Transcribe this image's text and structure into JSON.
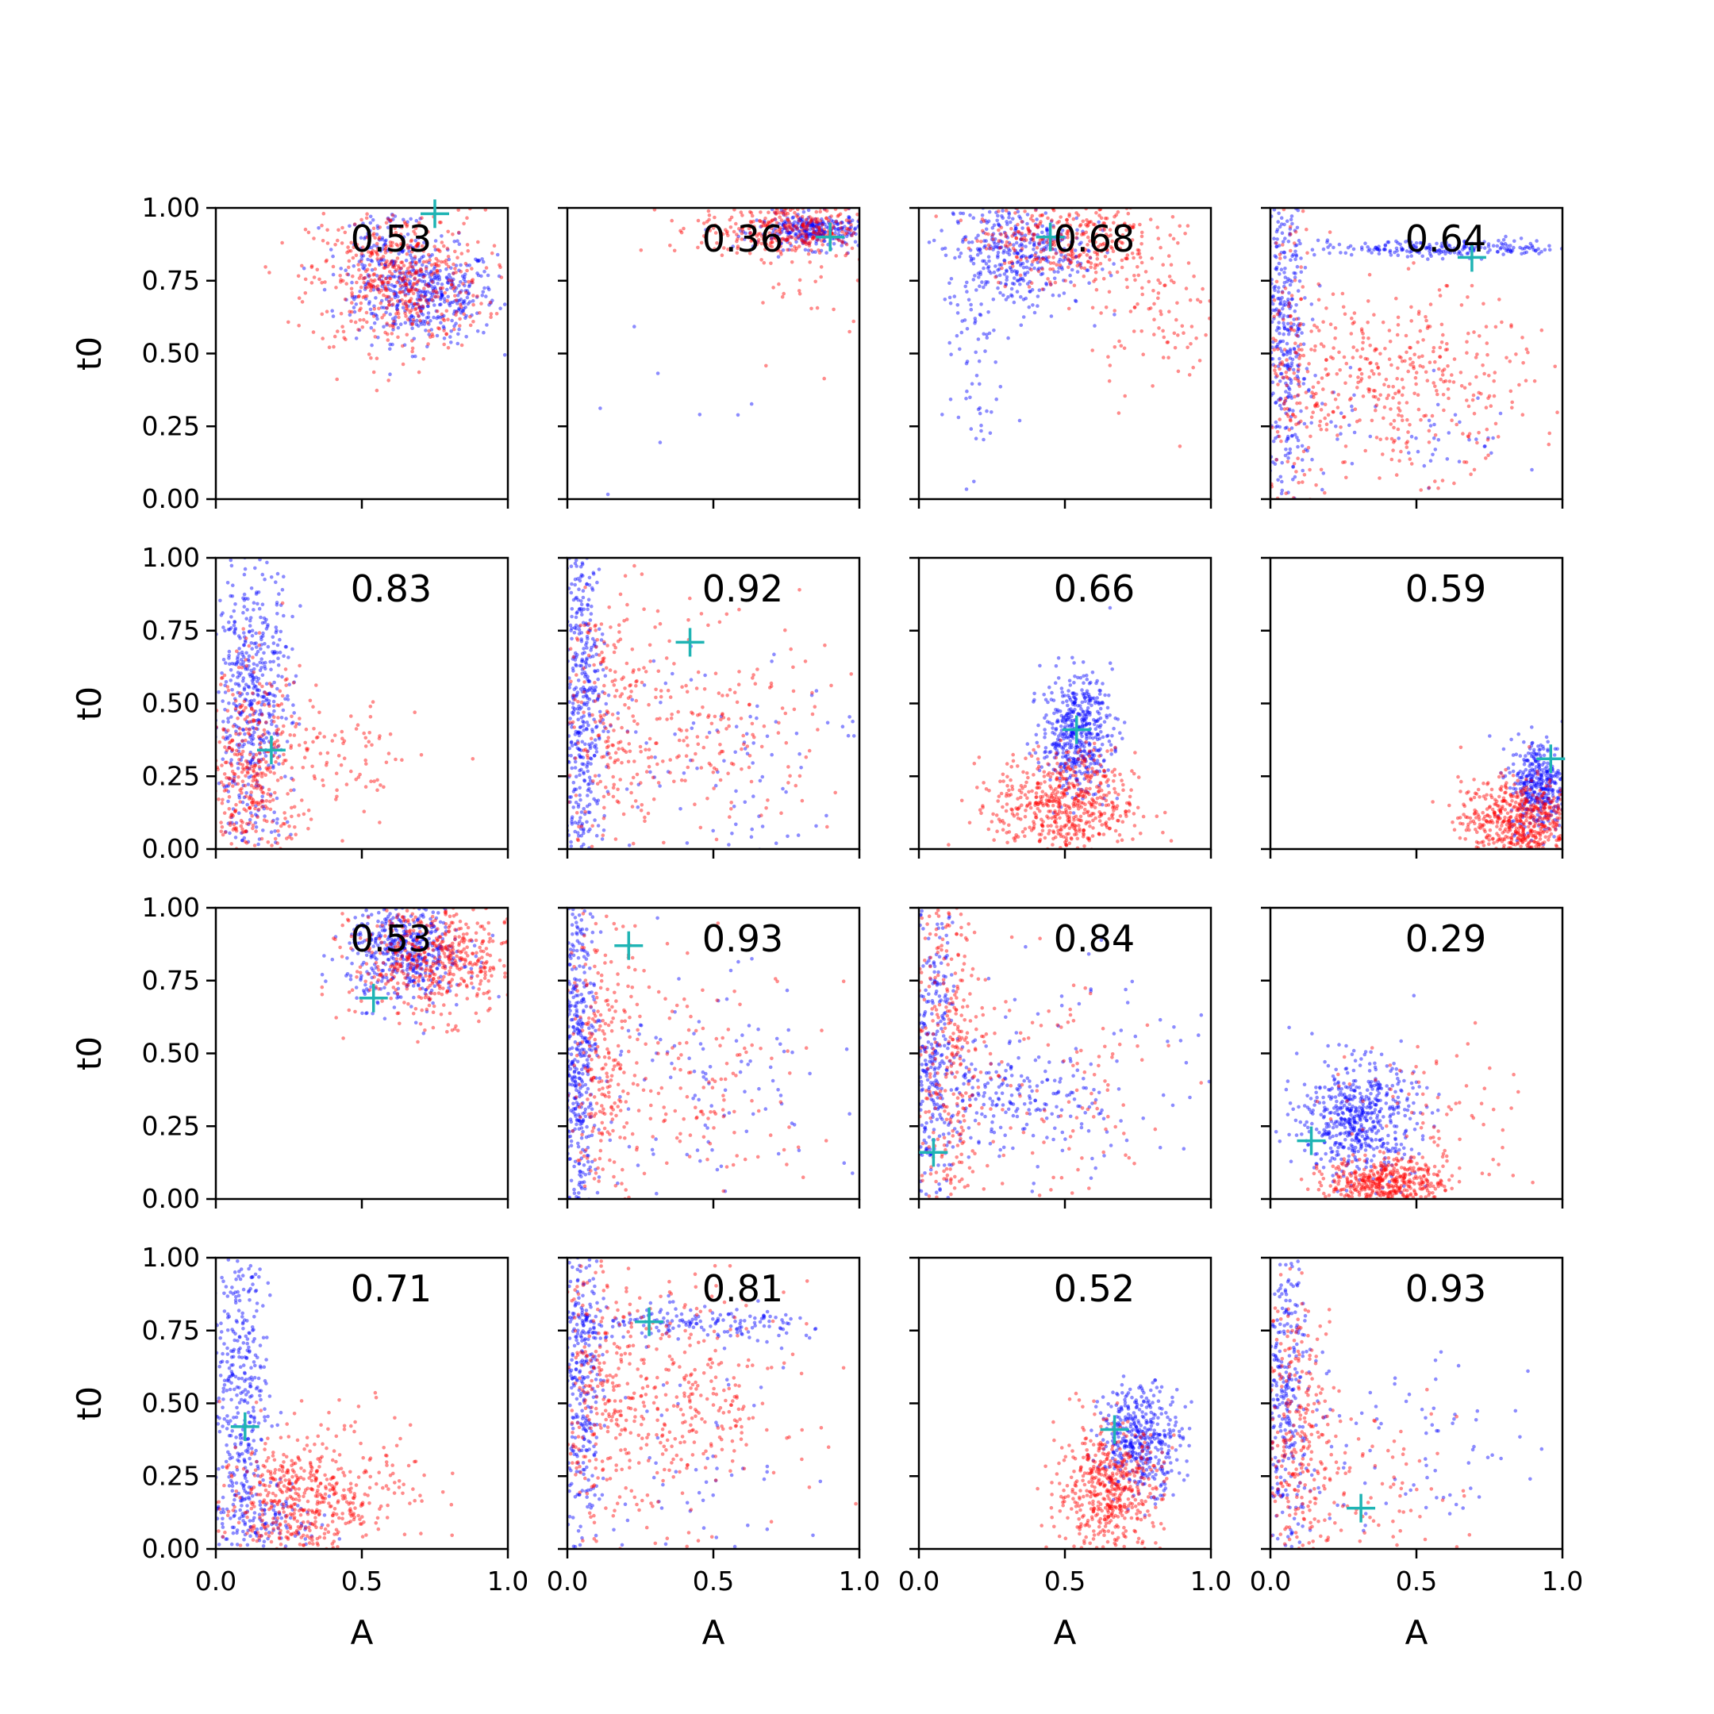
{
  "colors": {
    "blue": "#0000ff",
    "red": "#ff0000",
    "cross": "#1fb4b4"
  },
  "axes": {
    "xlabel": "A",
    "ylabel": "t0",
    "xticks": [
      "0.0",
      "0.5",
      "1.0"
    ],
    "yticks": [
      "0.00",
      "0.25",
      "0.50",
      "0.75",
      "1.00"
    ],
    "xlim": [
      0,
      1
    ],
    "ylim": [
      0,
      1
    ]
  },
  "chart_data": [
    {
      "type": "scatter",
      "label": "0.53",
      "cross": [
        0.75,
        0.98
      ],
      "series": [
        {
          "color": "blue",
          "clusters": [
            {
              "cx": 0.72,
              "cy": 0.7,
              "sx": 0.12,
              "sy": 0.08,
              "n": 420
            },
            {
              "cx": 0.58,
              "cy": 0.85,
              "sx": 0.08,
              "sy": 0.08,
              "n": 120
            }
          ]
        },
        {
          "color": "red",
          "clusters": [
            {
              "cx": 0.62,
              "cy": 0.75,
              "sx": 0.15,
              "sy": 0.12,
              "n": 520
            }
          ]
        }
      ]
    },
    {
      "type": "scatter",
      "label": "0.36",
      "cross": [
        0.9,
        0.9
      ],
      "series": [
        {
          "color": "blue",
          "clusters": [
            {
              "cx": 0.85,
              "cy": 0.92,
              "sx": 0.1,
              "sy": 0.03,
              "n": 320
            },
            {
              "cx": 0.3,
              "cy": 0.2,
              "sx": 0.15,
              "sy": 0.15,
              "n": 12
            }
          ]
        },
        {
          "color": "red",
          "clusters": [
            {
              "cx": 0.75,
              "cy": 0.93,
              "sx": 0.15,
              "sy": 0.05,
              "n": 360
            },
            {
              "cx": 0.85,
              "cy": 0.72,
              "sx": 0.1,
              "sy": 0.12,
              "n": 25
            }
          ]
        }
      ]
    },
    {
      "type": "scatter",
      "label": "0.68",
      "cross": [
        0.45,
        0.9
      ],
      "series": [
        {
          "color": "blue",
          "clusters": [
            {
              "cx": 0.33,
              "cy": 0.85,
              "sx": 0.12,
              "sy": 0.1,
              "n": 420
            },
            {
              "cx": 0.18,
              "cy": 0.45,
              "sx": 0.05,
              "sy": 0.18,
              "n": 50
            }
          ]
        },
        {
          "color": "red",
          "clusters": [
            {
              "cx": 0.5,
              "cy": 0.9,
              "sx": 0.15,
              "sy": 0.08,
              "n": 360
            },
            {
              "cx": 0.82,
              "cy": 0.65,
              "sx": 0.12,
              "sy": 0.15,
              "n": 100
            }
          ]
        }
      ]
    },
    {
      "type": "scatter",
      "label": "0.64",
      "cross": [
        0.69,
        0.83
      ],
      "series": [
        {
          "color": "blue",
          "clusters": [
            {
              "cx": 0.05,
              "cy": 0.55,
              "sx": 0.04,
              "sy": 0.3,
              "n": 380
            },
            {
              "cx": 0.6,
              "cy": 0.86,
              "sx": 0.25,
              "sy": 0.015,
              "n": 220
            },
            {
              "cx": 0.45,
              "cy": 0.22,
              "sx": 0.25,
              "sy": 0.1,
              "n": 60
            }
          ]
        },
        {
          "color": "red",
          "clusters": [
            {
              "cx": 0.45,
              "cy": 0.4,
              "sx": 0.22,
              "sy": 0.15,
              "n": 380
            },
            {
              "cx": 0.08,
              "cy": 0.5,
              "sx": 0.05,
              "sy": 0.3,
              "n": 150
            }
          ]
        }
      ]
    },
    {
      "type": "scatter",
      "label": "0.83",
      "cross": [
        0.19,
        0.34
      ],
      "series": [
        {
          "color": "blue",
          "clusters": [
            {
              "cx": 0.12,
              "cy": 0.5,
              "sx": 0.07,
              "sy": 0.25,
              "n": 520
            }
          ]
        },
        {
          "color": "red",
          "clusters": [
            {
              "cx": 0.12,
              "cy": 0.25,
              "sx": 0.09,
              "sy": 0.18,
              "n": 420
            },
            {
              "cx": 0.45,
              "cy": 0.3,
              "sx": 0.12,
              "sy": 0.12,
              "n": 80
            }
          ]
        }
      ]
    },
    {
      "type": "scatter",
      "label": "0.92",
      "cross": [
        0.42,
        0.71
      ],
      "series": [
        {
          "color": "blue",
          "clusters": [
            {
              "cx": 0.05,
              "cy": 0.5,
              "sx": 0.04,
              "sy": 0.3,
              "n": 450
            },
            {
              "cx": 0.55,
              "cy": 0.35,
              "sx": 0.25,
              "sy": 0.2,
              "n": 100
            }
          ]
        },
        {
          "color": "red",
          "clusters": [
            {
              "cx": 0.15,
              "cy": 0.45,
              "sx": 0.08,
              "sy": 0.28,
              "n": 220
            },
            {
              "cx": 0.5,
              "cy": 0.4,
              "sx": 0.2,
              "sy": 0.18,
              "n": 180
            }
          ]
        }
      ]
    },
    {
      "type": "scatter",
      "label": "0.66",
      "cross": [
        0.54,
        0.41
      ],
      "series": [
        {
          "color": "blue",
          "clusters": [
            {
              "cx": 0.54,
              "cy": 0.4,
              "sx": 0.06,
              "sy": 0.1,
              "n": 480
            }
          ]
        },
        {
          "color": "red",
          "clusters": [
            {
              "cx": 0.5,
              "cy": 0.15,
              "sx": 0.12,
              "sy": 0.09,
              "n": 560
            }
          ]
        }
      ]
    },
    {
      "type": "scatter",
      "label": "0.59",
      "cross": [
        0.96,
        0.31
      ],
      "series": [
        {
          "color": "blue",
          "clusters": [
            {
              "cx": 0.92,
              "cy": 0.22,
              "sx": 0.05,
              "sy": 0.08,
              "n": 380
            }
          ]
        },
        {
          "color": "red",
          "clusters": [
            {
              "cx": 0.85,
              "cy": 0.1,
              "sx": 0.1,
              "sy": 0.07,
              "n": 560
            }
          ]
        }
      ]
    },
    {
      "type": "scatter",
      "label": "0.53",
      "cross": [
        0.54,
        0.69
      ],
      "series": [
        {
          "color": "blue",
          "clusters": [
            {
              "cx": 0.65,
              "cy": 0.85,
              "sx": 0.1,
              "sy": 0.09,
              "n": 480
            }
          ]
        },
        {
          "color": "red",
          "clusters": [
            {
              "cx": 0.75,
              "cy": 0.82,
              "sx": 0.14,
              "sy": 0.1,
              "n": 520
            }
          ]
        }
      ]
    },
    {
      "type": "scatter",
      "label": "0.93",
      "cross": [
        0.21,
        0.87
      ],
      "series": [
        {
          "color": "blue",
          "clusters": [
            {
              "cx": 0.04,
              "cy": 0.5,
              "sx": 0.03,
              "sy": 0.3,
              "n": 420
            },
            {
              "cx": 0.45,
              "cy": 0.35,
              "sx": 0.25,
              "sy": 0.22,
              "n": 110
            }
          ]
        },
        {
          "color": "red",
          "clusters": [
            {
              "cx": 0.12,
              "cy": 0.45,
              "sx": 0.07,
              "sy": 0.28,
              "n": 260
            },
            {
              "cx": 0.45,
              "cy": 0.4,
              "sx": 0.2,
              "sy": 0.2,
              "n": 140
            }
          ]
        }
      ]
    },
    {
      "type": "scatter",
      "label": "0.84",
      "cross": [
        0.05,
        0.16
      ],
      "series": [
        {
          "color": "blue",
          "clusters": [
            {
              "cx": 0.05,
              "cy": 0.45,
              "sx": 0.04,
              "sy": 0.28,
              "n": 320
            },
            {
              "cx": 0.3,
              "cy": 0.35,
              "sx": 0.15,
              "sy": 0.08,
              "n": 170
            },
            {
              "cx": 0.6,
              "cy": 0.45,
              "sx": 0.22,
              "sy": 0.25,
              "n": 90
            }
          ]
        },
        {
          "color": "red",
          "clusters": [
            {
              "cx": 0.1,
              "cy": 0.5,
              "sx": 0.07,
              "sy": 0.3,
              "n": 330
            },
            {
              "cx": 0.45,
              "cy": 0.4,
              "sx": 0.2,
              "sy": 0.22,
              "n": 100
            }
          ]
        }
      ]
    },
    {
      "type": "scatter",
      "label": "0.29",
      "cross": [
        0.14,
        0.2
      ],
      "series": [
        {
          "color": "blue",
          "clusters": [
            {
              "cx": 0.3,
              "cy": 0.27,
              "sx": 0.1,
              "sy": 0.1,
              "n": 560
            }
          ]
        },
        {
          "color": "red",
          "clusters": [
            {
              "cx": 0.4,
              "cy": 0.06,
              "sx": 0.1,
              "sy": 0.04,
              "n": 420
            },
            {
              "cx": 0.55,
              "cy": 0.25,
              "sx": 0.18,
              "sy": 0.15,
              "n": 90
            }
          ]
        }
      ]
    },
    {
      "type": "scatter",
      "label": "0.71",
      "cross": [
        0.1,
        0.42
      ],
      "series": [
        {
          "color": "blue",
          "clusters": [
            {
              "cx": 0.08,
              "cy": 0.55,
              "sx": 0.05,
              "sy": 0.3,
              "n": 380
            },
            {
              "cx": 0.15,
              "cy": 0.1,
              "sx": 0.1,
              "sy": 0.08,
              "n": 160
            }
          ]
        },
        {
          "color": "red",
          "clusters": [
            {
              "cx": 0.25,
              "cy": 0.15,
              "sx": 0.12,
              "sy": 0.1,
              "n": 380
            },
            {
              "cx": 0.45,
              "cy": 0.25,
              "sx": 0.15,
              "sy": 0.12,
              "n": 160
            }
          ]
        }
      ]
    },
    {
      "type": "scatter",
      "label": "0.81",
      "cross": [
        0.28,
        0.78
      ],
      "series": [
        {
          "color": "blue",
          "clusters": [
            {
              "cx": 0.05,
              "cy": 0.6,
              "sx": 0.03,
              "sy": 0.3,
              "n": 300
            },
            {
              "cx": 0.45,
              "cy": 0.77,
              "sx": 0.25,
              "sy": 0.03,
              "n": 180
            },
            {
              "cx": 0.4,
              "cy": 0.3,
              "sx": 0.25,
              "sy": 0.2,
              "n": 60
            }
          ]
        },
        {
          "color": "red",
          "clusters": [
            {
              "cx": 0.35,
              "cy": 0.5,
              "sx": 0.2,
              "sy": 0.2,
              "n": 380
            },
            {
              "cx": 0.1,
              "cy": 0.5,
              "sx": 0.06,
              "sy": 0.3,
              "n": 180
            }
          ]
        }
      ]
    },
    {
      "type": "scatter",
      "label": "0.52",
      "cross": [
        0.67,
        0.41
      ],
      "series": [
        {
          "color": "blue",
          "clusters": [
            {
              "cx": 0.76,
              "cy": 0.38,
              "sx": 0.07,
              "sy": 0.09,
              "n": 420
            }
          ]
        },
        {
          "color": "red",
          "clusters": [
            {
              "cx": 0.65,
              "cy": 0.2,
              "sx": 0.09,
              "sy": 0.11,
              "n": 520
            }
          ]
        }
      ]
    },
    {
      "type": "scatter",
      "label": "0.93",
      "cross": [
        0.31,
        0.14
      ],
      "series": [
        {
          "color": "blue",
          "clusters": [
            {
              "cx": 0.05,
              "cy": 0.5,
              "sx": 0.04,
              "sy": 0.3,
              "n": 320
            },
            {
              "cx": 0.4,
              "cy": 0.3,
              "sx": 0.25,
              "sy": 0.22,
              "n": 100
            }
          ]
        },
        {
          "color": "red",
          "clusters": [
            {
              "cx": 0.1,
              "cy": 0.35,
              "sx": 0.07,
              "sy": 0.28,
              "n": 330
            },
            {
              "cx": 0.35,
              "cy": 0.2,
              "sx": 0.15,
              "sy": 0.15,
              "n": 80
            }
          ]
        }
      ]
    }
  ]
}
